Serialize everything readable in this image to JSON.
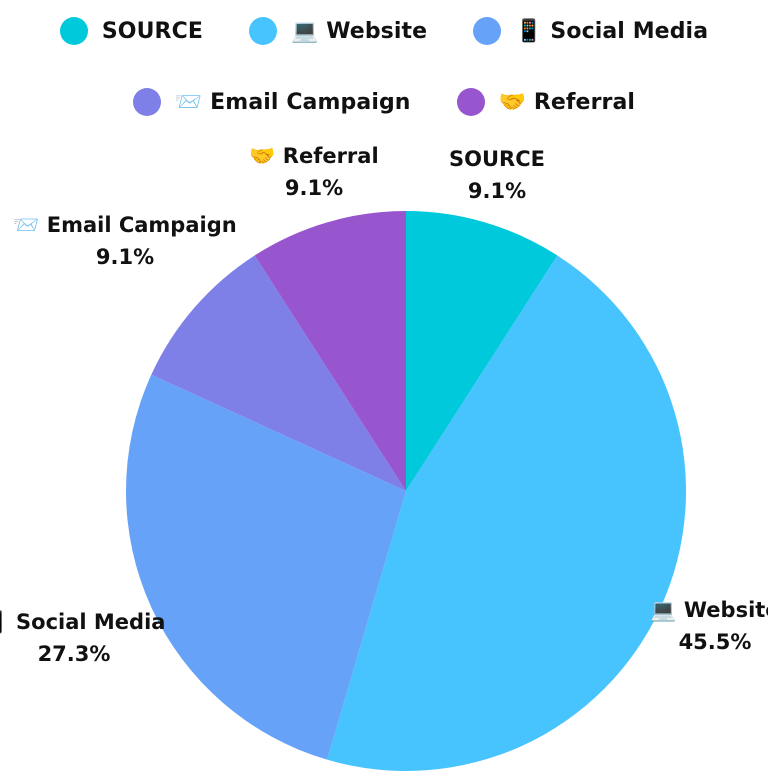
{
  "chart_data": {
    "type": "pie",
    "categories": [
      "SOURCE",
      "💻 Website",
      "📱 Social Media",
      "📨 Email Campaign",
      "🤝 Referral"
    ],
    "values": [
      9.1,
      45.5,
      27.3,
      9.1,
      9.1
    ],
    "percent_labels": [
      "9.1%",
      "45.5%",
      "27.3%",
      "9.1%",
      "9.1%"
    ],
    "colors": [
      "#00C9DB",
      "#47C3FD",
      "#66A3F8",
      "#7E80E7",
      "#9856CE"
    ],
    "start_angle": "12 o'clock",
    "direction": "clockwise",
    "legend_position": "top"
  }
}
